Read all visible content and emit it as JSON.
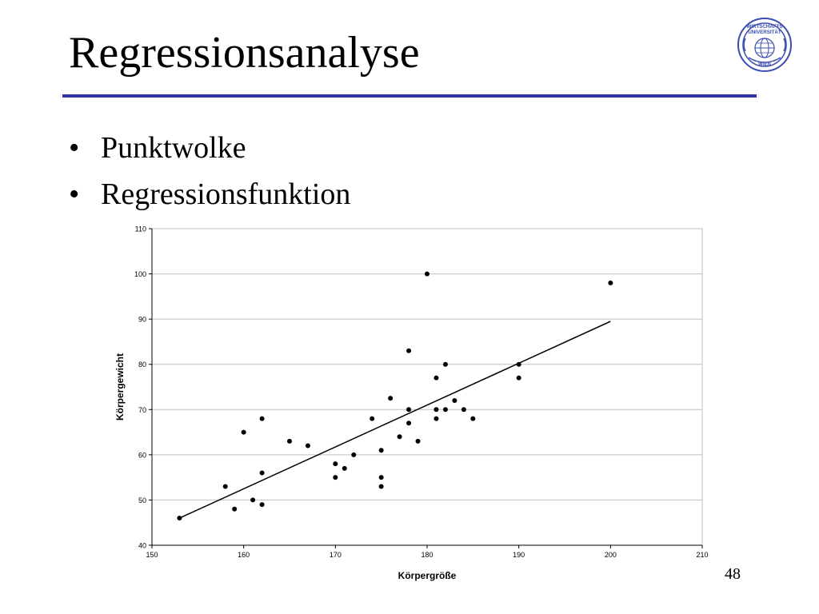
{
  "slide": {
    "title": "Regressionsanalyse",
    "bullets": [
      "Punktwolke",
      "Regressionsfunktion"
    ],
    "page_number": "48",
    "logo": {
      "text_top": "WIRTSCHAFTS UNIVERSITÄT",
      "text_bottom": "WIEN",
      "color": "#3a4db0"
    },
    "rule_color": "#3333a0"
  },
  "chart_data": {
    "type": "scatter",
    "title": "",
    "xlabel": "Körpergröße",
    "ylabel": "Körpergewicht",
    "xlim": [
      150,
      210
    ],
    "ylim": [
      40,
      110
    ],
    "xticks": [
      150,
      160,
      170,
      180,
      190,
      200,
      210
    ],
    "yticks": [
      40,
      50,
      60,
      70,
      80,
      90,
      100,
      110
    ],
    "grid": "horizontal",
    "points": [
      [
        153,
        46
      ],
      [
        158,
        53
      ],
      [
        159,
        48
      ],
      [
        160,
        65
      ],
      [
        161,
        50
      ],
      [
        162,
        68
      ],
      [
        162,
        56
      ],
      [
        162,
        49
      ],
      [
        165,
        63
      ],
      [
        167,
        62
      ],
      [
        170,
        58
      ],
      [
        170,
        55
      ],
      [
        171,
        57
      ],
      [
        172,
        60
      ],
      [
        174,
        68
      ],
      [
        175,
        61
      ],
      [
        175,
        55
      ],
      [
        175,
        53
      ],
      [
        176,
        72.5
      ],
      [
        177,
        64
      ],
      [
        178,
        83
      ],
      [
        178,
        70
      ],
      [
        178,
        67
      ],
      [
        179,
        63
      ],
      [
        180,
        100
      ],
      [
        181,
        77
      ],
      [
        181,
        70
      ],
      [
        181,
        68
      ],
      [
        182,
        80
      ],
      [
        182,
        70
      ],
      [
        183,
        72
      ],
      [
        184,
        70
      ],
      [
        185,
        68
      ],
      [
        190,
        80
      ],
      [
        190,
        77
      ],
      [
        200,
        98
      ]
    ],
    "regression_line": [
      [
        153,
        46
      ],
      [
        200,
        89.5
      ]
    ],
    "colors": {
      "points": "#000000",
      "line": "#000000",
      "grid": "#c0c0c0",
      "axis": "#000000"
    }
  }
}
